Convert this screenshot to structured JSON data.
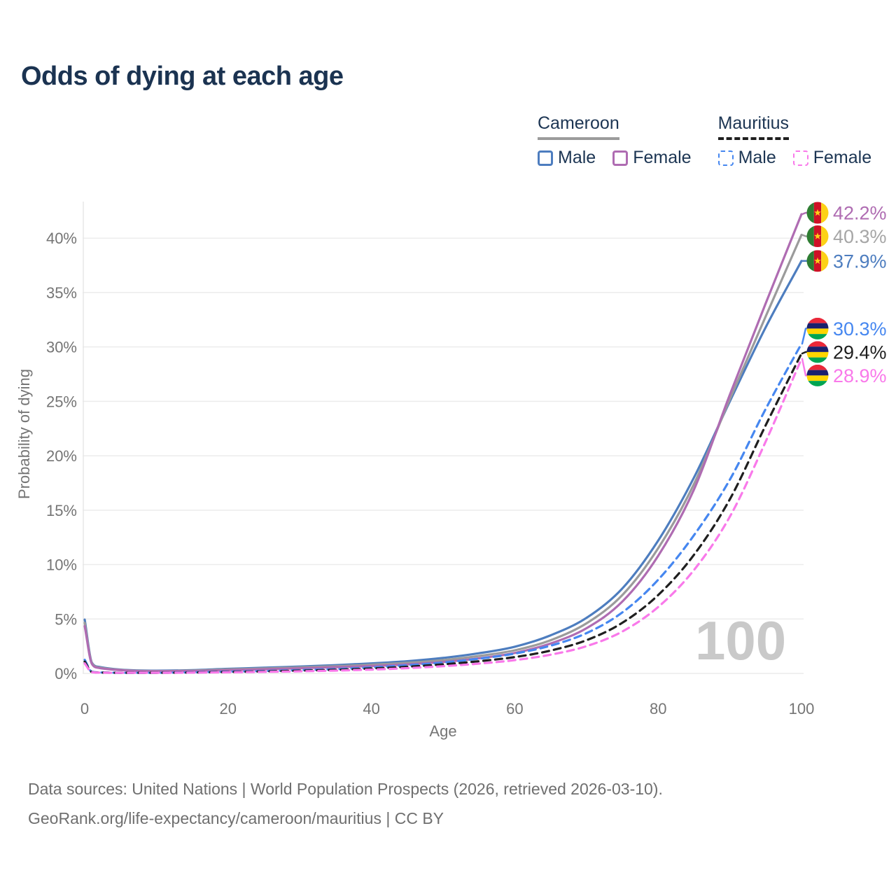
{
  "title": "Odds of dying at each age",
  "watermark": "100",
  "legend": {
    "groups": [
      {
        "name": "Cameroon",
        "line_style": "solid",
        "line_color": "#9b9b9b",
        "items": [
          {
            "label": "Male",
            "color": "#4d7dbf",
            "dashed": false
          },
          {
            "label": "Female",
            "color": "#af6cb2",
            "dashed": false
          }
        ]
      },
      {
        "name": "Mauritius",
        "line_style": "dashed",
        "line_color": "#1f1f1f",
        "items": [
          {
            "label": "Male",
            "color": "#4687f0",
            "dashed": true
          },
          {
            "label": "Female",
            "color": "#f979ea",
            "dashed": true
          }
        ]
      }
    ]
  },
  "footer": {
    "line1": "Data sources: United Nations | World Population Prospects (2026, retrieved 2026-03-10).",
    "line2": "GeoRank.org/life-expectancy/cameroon/mauritius | CC BY"
  },
  "chart_data": {
    "type": "line",
    "title": "Odds of dying at each age",
    "xlabel": "Age",
    "ylabel": "Probability of dying",
    "xlim": [
      0,
      100
    ],
    "ylim": [
      0,
      44
    ],
    "x_ticks": [
      0,
      20,
      40,
      60,
      80,
      100
    ],
    "y_ticks": [
      "0%",
      "5%",
      "10%",
      "15%",
      "20%",
      "25%",
      "30%",
      "35%",
      "40%"
    ],
    "grid": "horizontal",
    "legend_position": "top-right",
    "x": [
      0,
      1,
      2,
      5,
      10,
      15,
      20,
      25,
      30,
      35,
      40,
      45,
      50,
      55,
      60,
      65,
      70,
      75,
      80,
      85,
      90,
      95,
      100
    ],
    "series": [
      {
        "name": "Cameroon Male",
        "country": "Cameroon",
        "flag": "cameroon",
        "color": "#4d7dbf",
        "label_color": "#4d7dbf",
        "dashed": false,
        "end_label": "37.9%",
        "values": [
          4.95,
          1.0,
          0.6,
          0.35,
          0.25,
          0.3,
          0.42,
          0.52,
          0.63,
          0.76,
          0.92,
          1.12,
          1.42,
          1.85,
          2.45,
          3.5,
          5.1,
          7.8,
          12.2,
          18.0,
          25.0,
          31.8,
          37.9
        ]
      },
      {
        "name": "Cameroon Both sexes",
        "country": "Cameroon",
        "flag": "cameroon",
        "color": "#9b9b9b",
        "label_color": "#a6a6a6",
        "dashed": false,
        "end_label": "40.3%",
        "values": [
          4.65,
          0.95,
          0.55,
          0.32,
          0.22,
          0.26,
          0.36,
          0.45,
          0.55,
          0.66,
          0.8,
          0.97,
          1.22,
          1.6,
          2.12,
          3.05,
          4.6,
          7.2,
          11.5,
          17.4,
          25.2,
          32.8,
          40.3
        ]
      },
      {
        "name": "Cameroon Female",
        "country": "Cameroon",
        "flag": "cameroon",
        "color": "#af6cb2",
        "label_color": "#af6cb2",
        "dashed": false,
        "end_label": "42.2%",
        "values": [
          4.35,
          0.88,
          0.5,
          0.3,
          0.2,
          0.22,
          0.3,
          0.38,
          0.47,
          0.57,
          0.68,
          0.83,
          1.05,
          1.38,
          1.88,
          2.75,
          4.15,
          6.6,
          10.8,
          16.9,
          25.6,
          34.0,
          42.2
        ]
      },
      {
        "name": "Mauritius Male",
        "country": "Mauritius",
        "flag": "mauritius",
        "color": "#4687f0",
        "label_color": "#4687f0",
        "dashed": true,
        "end_label": "30.3%",
        "values": [
          1.25,
          0.15,
          0.09,
          0.06,
          0.06,
          0.1,
          0.16,
          0.22,
          0.3,
          0.4,
          0.55,
          0.75,
          1.0,
          1.35,
          1.82,
          2.55,
          3.7,
          5.6,
          8.6,
          12.7,
          17.8,
          24.3,
          30.3
        ]
      },
      {
        "name": "Mauritius Both sexes",
        "country": "Mauritius",
        "flag": "mauritius",
        "color": "#1f1f1f",
        "label_color": "#1f1f1f",
        "dashed": true,
        "end_label": "29.4%",
        "values": [
          1.08,
          0.13,
          0.08,
          0.055,
          0.055,
          0.085,
          0.13,
          0.18,
          0.25,
          0.33,
          0.45,
          0.61,
          0.83,
          1.12,
          1.5,
          2.1,
          3.05,
          4.65,
          7.2,
          10.9,
          16.0,
          22.8,
          29.4
        ]
      },
      {
        "name": "Mauritius Female",
        "country": "Mauritius",
        "flag": "mauritius",
        "color": "#f979ea",
        "label_color": "#f979ea",
        "dashed": true,
        "end_label": "28.9%",
        "values": [
          0.92,
          0.11,
          0.07,
          0.05,
          0.05,
          0.07,
          0.1,
          0.14,
          0.19,
          0.26,
          0.35,
          0.48,
          0.66,
          0.9,
          1.22,
          1.72,
          2.5,
          3.85,
          6.1,
          9.5,
          14.4,
          21.3,
          28.9
        ]
      }
    ],
    "flag_colors": {
      "cameroon": {
        "green": "#2e7d32",
        "red": "#ce1126",
        "yellow": "#fcd116",
        "star": "#fcd116"
      },
      "mauritius": {
        "red": "#ea2839",
        "blue": "#1a206d",
        "yellow": "#ffd500",
        "green": "#00a551"
      }
    }
  }
}
